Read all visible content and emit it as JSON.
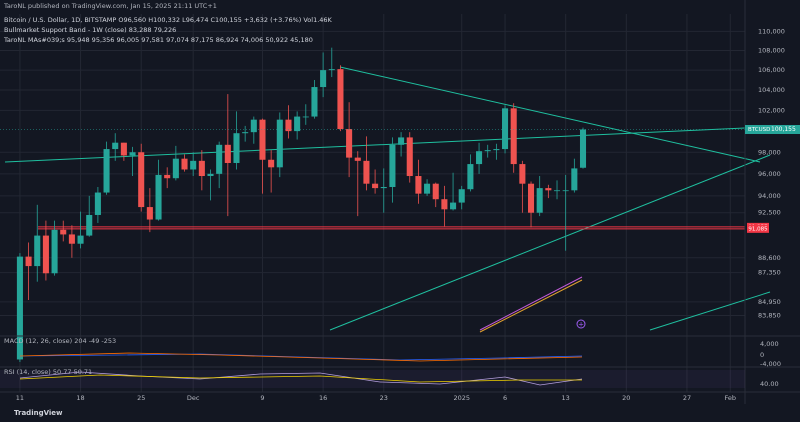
{
  "chart_data": {
    "type": "candlestick",
    "title": "TaroNL published on TradingView.com, Jan 15, 2025 21:11 UTC+1",
    "legend_lines": [
      "Bitcoin / U.S. Dollar, 1D, BITSTAMP  O96,560 H100,332 L96,474 C100,155 +3,632 (+3.76%) Vol1.46K",
      "Bullmarket Support Band - 1W (close)  83,288  79,226",
      "TaroNL MAs#039;s  95,948  95,356  96,005  97,581  97,074  87,175  86,924  74,006  50,922  45,180"
    ],
    "up_color": "#26a69a",
    "down_color": "#ef5350",
    "log_scale": true,
    "grid": true,
    "ylim": [
      82300,
      111200
    ],
    "yticks": [
      {
        "value": 110000,
        "label": "110,000"
      },
      {
        "value": 108000,
        "label": "108,000"
      },
      {
        "value": 106000,
        "label": "106,000"
      },
      {
        "value": 104000,
        "label": "104,000"
      },
      {
        "value": 102000,
        "label": "102,000"
      },
      {
        "value": 98000,
        "label": "98,000"
      },
      {
        "value": 96000,
        "label": "96,000"
      },
      {
        "value": 94000,
        "label": "94,000"
      },
      {
        "value": 92500,
        "label": "92,500"
      },
      {
        "value": 88600,
        "label": "88,600"
      },
      {
        "value": 87350,
        "label": "87,350"
      },
      {
        "value": 84950,
        "label": "84,950"
      },
      {
        "value": 83850,
        "label": "83,850"
      }
    ],
    "xlim": [
      -2.3,
      83.7
    ],
    "xticks": [
      {
        "value": 0,
        "label": "11"
      },
      {
        "value": 7,
        "label": "18"
      },
      {
        "value": 14,
        "label": "25"
      },
      {
        "value": 20,
        "label": "Dec"
      },
      {
        "value": 28,
        "label": "9"
      },
      {
        "value": 35,
        "label": "16"
      },
      {
        "value": 42,
        "label": "23"
      },
      {
        "value": 51,
        "label": "2025"
      },
      {
        "value": 56,
        "label": "6"
      },
      {
        "value": 63,
        "label": "13"
      },
      {
        "value": 70,
        "label": "20"
      },
      {
        "value": 77,
        "label": "27"
      },
      {
        "value": 82,
        "label": "Feb"
      }
    ],
    "open": [
      80400,
      88700,
      87900,
      90500,
      87300,
      91000,
      90600,
      89800,
      90500,
      92300,
      94300,
      98300,
      98900,
      97700,
      98000,
      93000,
      91900,
      95900,
      95600,
      97400,
      96400,
      97200,
      95800,
      96000,
      98700,
      97000,
      99800,
      99900,
      101100,
      97300,
      96600,
      101100,
      100000,
      101400,
      101400,
      104300,
      106000,
      106100,
      100200,
      97500,
      97200,
      95100,
      94700,
      94800,
      98700,
      99400,
      95800,
      94200,
      95100,
      93700,
      92800,
      93400,
      94600,
      96900,
      98100,
      98200,
      98300,
      102200,
      96900,
      95100,
      92500,
      94700,
      94500,
      94500,
      94500,
      96560
    ],
    "high": [
      89000,
      89900,
      93200,
      91800,
      91800,
      91800,
      91400,
      92600,
      94000,
      94800,
      99000,
      99800,
      98900,
      98500,
      98800,
      94700,
      97300,
      96600,
      98600,
      97800,
      98000,
      98200,
      96400,
      99000,
      103600,
      101900,
      100500,
      101400,
      101200,
      98200,
      101800,
      102500,
      101900,
      102600,
      105000,
      107800,
      108300,
      106500,
      102800,
      98100,
      99500,
      96400,
      96500,
      99400,
      99900,
      99900,
      97300,
      95500,
      95200,
      94900,
      96100,
      94900,
      97800,
      98900,
      98700,
      98800,
      102500,
      102700,
      97200,
      95300,
      95800,
      95000,
      95400,
      95900,
      97400,
      100332
    ],
    "low": [
      80200,
      85100,
      86600,
      86700,
      87100,
      90000,
      88600,
      89400,
      90400,
      91600,
      94100,
      97200,
      97200,
      95800,
      92600,
      90800,
      91800,
      94700,
      95400,
      96200,
      95800,
      94500,
      93600,
      94700,
      92200,
      96400,
      99000,
      98800,
      94200,
      94300,
      95700,
      99300,
      99200,
      100600,
      101200,
      103300,
      105300,
      100000,
      95700,
      92200,
      94500,
      94200,
      92500,
      93400,
      97600,
      95200,
      93300,
      94000,
      93000,
      91300,
      92700,
      92800,
      94400,
      96000,
      97500,
      97300,
      97900,
      96100,
      92500,
      91200,
      92200,
      93800,
      93700,
      89200,
      94300,
      96474
    ],
    "close": [
      88700,
      87900,
      90500,
      87300,
      91000,
      90600,
      89800,
      90500,
      92300,
      94300,
      98300,
      98900,
      97700,
      98000,
      93000,
      91900,
      95900,
      95600,
      97400,
      96400,
      97200,
      95800,
      96000,
      98700,
      97000,
      99800,
      99900,
      101100,
      97300,
      96600,
      101100,
      100000,
      101400,
      101400,
      104300,
      106000,
      106100,
      100200,
      97500,
      97200,
      95100,
      94700,
      94800,
      98700,
      99400,
      95800,
      94200,
      95100,
      93700,
      92800,
      93400,
      94600,
      96900,
      98100,
      98200,
      98300,
      102200,
      96900,
      95100,
      92500,
      94700,
      94500,
      94500,
      94500,
      96500,
      100155
    ],
    "last_price": {
      "symbol": "BTCUSD",
      "value": 100155,
      "label": "100,155"
    },
    "levels": [
      {
        "value": 91257,
        "label": "91,257"
      },
      {
        "value": 91085,
        "label": "91,085"
      }
    ],
    "macd": {
      "legend": "MACD (12, 26, close)  204  -49  -253",
      "axis_labels": [
        "4,000",
        "0",
        "-4,000"
      ]
    },
    "rsi": {
      "legend": "RSI (14, close)  50.77  50.71",
      "axis_labels": [
        "40.00"
      ]
    },
    "brand": "TradingView"
  }
}
